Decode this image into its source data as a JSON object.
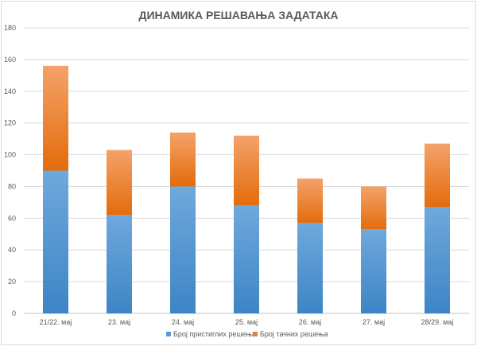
{
  "chart_data": {
    "type": "bar",
    "stacked": true,
    "title": "ДИНАМИКА РЕШАВАЊА ЗАДАТАКА",
    "categories": [
      "21/22. мај",
      "23. мај",
      "24. мај",
      "25. мај",
      "26. мај",
      "27. мај",
      "28/29. мај"
    ],
    "series": [
      {
        "name": "Број пристиглих решења",
        "values": [
          90,
          62,
          80,
          68,
          57,
          53,
          67
        ],
        "color": "#5b9bd5"
      },
      {
        "name": "Број тачних решења",
        "values": [
          66,
          41,
          34,
          44,
          28,
          27,
          40
        ],
        "color": "#ed7d31"
      }
    ],
    "ylim": [
      0,
      180
    ],
    "yticks": [
      0,
      20,
      40,
      60,
      80,
      100,
      120,
      140,
      160,
      180
    ],
    "grid": true,
    "legend": "bottom"
  }
}
